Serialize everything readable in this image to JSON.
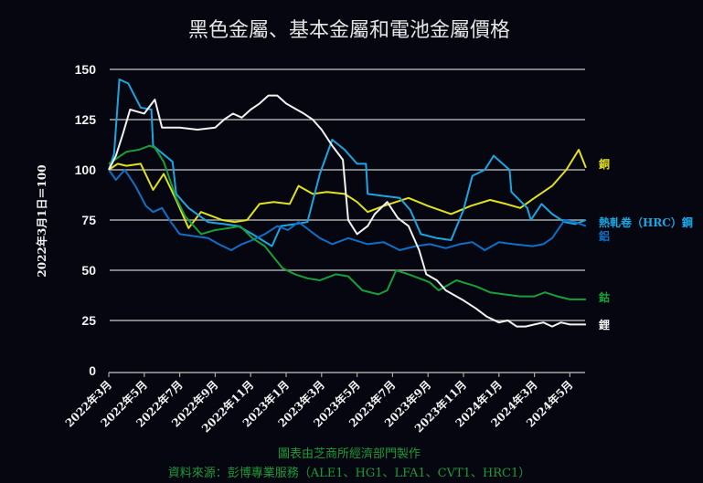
{
  "chart_data": {
    "type": "line",
    "title": "黑色金屬、基本金屬和電池金屬價格",
    "ylabel": "2022年3月1日＝100",
    "xlabel": "",
    "ylim": [
      0,
      150
    ],
    "yticks": [
      0,
      25,
      50,
      75,
      100,
      125,
      150
    ],
    "grid": true,
    "x_unit": "months since 2022-03",
    "xlim": [
      0,
      27
    ],
    "xticks": [
      {
        "m": 0,
        "label": "2022年3月"
      },
      {
        "m": 2,
        "label": "2022年5月"
      },
      {
        "m": 4,
        "label": "2022年7月"
      },
      {
        "m": 6,
        "label": "2022年9月"
      },
      {
        "m": 8,
        "label": "2022年11月"
      },
      {
        "m": 10,
        "label": "2023年1月"
      },
      {
        "m": 12,
        "label": "2023年3月"
      },
      {
        "m": 14,
        "label": "2023年5月"
      },
      {
        "m": 16,
        "label": "2023年7月"
      },
      {
        "m": 18,
        "label": "2023年9月"
      },
      {
        "m": 20,
        "label": "2023年11月"
      },
      {
        "m": 22,
        "label": "2024年1月"
      },
      {
        "m": 24,
        "label": "2024年3月"
      },
      {
        "m": 26,
        "label": "2024年5月"
      }
    ],
    "legend_placement": "right-end labels",
    "series": [
      {
        "name": "銅",
        "color": "#e2e21c",
        "x": [
          0,
          0.5,
          1,
          1.8,
          2.5,
          3.1,
          3.8,
          4.5,
          5.2,
          5.8,
          6.4,
          7.1,
          7.8,
          8.5,
          9.3,
          10.2,
          10.7,
          11.5,
          12.3,
          13.3,
          14,
          14.6,
          15.5,
          16.9,
          18,
          19.3,
          20.4,
          21.5,
          22.4,
          23.2,
          24,
          25,
          25.8,
          26.5,
          26.9
        ],
        "y": [
          100,
          103,
          102,
          103,
          90,
          98,
          85,
          71,
          79,
          77,
          75,
          74,
          75,
          83,
          84,
          83,
          92,
          88,
          89,
          88,
          84,
          79,
          82,
          86,
          82,
          78,
          82,
          85,
          83,
          81,
          86,
          92,
          100,
          110,
          101
        ]
      },
      {
        "name": "熱軋卷（HRC）鋼",
        "color": "#1aa6e2",
        "x": [
          0,
          0.3,
          0.6,
          1.1,
          1.8,
          2.4,
          2.5,
          3.6,
          3.8,
          4.5,
          5.6,
          6.5,
          7.3,
          8.1,
          9.2,
          9.7,
          10.5,
          11.2,
          11.9,
          12.6,
          13.3,
          14,
          14.5,
          14.6,
          15.5,
          16.4,
          17,
          17.6,
          18.5,
          19.3,
          20,
          20.5,
          21.2,
          21.7,
          22.6,
          22.7,
          23.6,
          23.8,
          24.4,
          25,
          25.7,
          26.3,
          26.9
        ],
        "y": [
          100,
          108,
          145,
          143,
          131,
          130,
          112,
          104,
          88,
          81,
          74,
          73,
          72,
          68,
          62,
          72,
          73,
          74,
          98,
          115,
          110,
          103,
          103,
          88,
          87,
          86,
          80,
          68,
          66,
          65,
          80,
          97,
          100,
          107,
          100,
          89,
          81,
          75,
          83,
          78,
          74,
          73,
          75
        ]
      },
      {
        "name": "鋁",
        "color": "#0f6fc6",
        "x": [
          0,
          0.4,
          0.9,
          1.5,
          2.1,
          2.5,
          3,
          3.5,
          4,
          4.8,
          5.6,
          6.2,
          6.9,
          7.5,
          8.1,
          8.8,
          9.5,
          10.1,
          10.7,
          11.3,
          11.9,
          12.6,
          13.5,
          14.6,
          15.5,
          16.4,
          17.3,
          18.1,
          19,
          19.8,
          20.5,
          21.2,
          22,
          22.8,
          23.9,
          24.5,
          25,
          25.7,
          26.3,
          26.9
        ],
        "y": [
          100,
          95,
          100,
          92,
          82,
          79,
          81,
          74,
          68,
          67,
          66,
          63,
          60,
          63,
          65,
          68,
          72,
          70,
          74,
          70,
          66,
          63,
          66,
          63,
          64,
          60,
          62,
          63,
          61,
          63,
          64,
          60,
          64,
          63,
          62,
          63,
          66,
          75,
          74,
          72
        ]
      },
      {
        "name": "鈷",
        "color": "#17a03a",
        "x": [
          0,
          0.5,
          1,
          1.7,
          2.3,
          2.6,
          3.1,
          3.8,
          4.3,
          5.2,
          6,
          6.8,
          7.4,
          8.1,
          8.8,
          9.8,
          10.5,
          11.2,
          11.9,
          12.8,
          13.5,
          14.3,
          15.2,
          15.7,
          16.2,
          16.9,
          17.5,
          18.1,
          18.6,
          19.6,
          20.7,
          21.5,
          22.3,
          23.2,
          24,
          24.6,
          25.3,
          26,
          26.9
        ],
        "y": [
          103,
          106,
          109,
          110,
          112,
          111,
          104,
          86,
          77,
          68,
          70,
          71,
          72,
          66,
          62,
          51,
          48,
          46,
          45,
          48,
          47,
          40,
          38,
          40,
          50,
          48,
          46,
          44,
          40,
          45,
          42,
          39,
          38,
          37,
          37,
          39,
          37,
          35.5,
          35.5
        ]
      },
      {
        "name": "鋰",
        "color": "#f2f2f2",
        "x": [
          0,
          0.4,
          0.8,
          1.2,
          2,
          2.6,
          3,
          4,
          5,
          6,
          6.5,
          7,
          7.5,
          8,
          8.5,
          9,
          9.5,
          10,
          10.6,
          11,
          11.5,
          12,
          12.6,
          13.2,
          13.5,
          14,
          14.6,
          15,
          15.7,
          16.3,
          16.9,
          17.5,
          17.9,
          18.5,
          19,
          20,
          20.7,
          21.3,
          22,
          22.5,
          23,
          23.5,
          24,
          24.5,
          25,
          25.5,
          26,
          26.9
        ],
        "y": [
          100,
          107,
          118,
          130,
          128,
          135,
          121,
          121,
          120,
          121,
          125,
          128,
          126,
          130,
          133,
          137,
          137,
          133,
          130,
          128,
          125,
          120,
          112,
          105,
          75,
          68,
          72,
          78,
          84,
          76,
          72,
          60,
          48,
          45,
          40,
          35,
          31,
          27,
          24,
          25,
          22,
          22,
          23,
          24,
          22,
          24,
          23,
          23
        ]
      }
    ]
  },
  "footer": {
    "credit": "圖表由芝商所經濟部門製作",
    "source": "資料來源：彭博專業服務（ALE1、HG1、LFA1、CVT1、HRC1）"
  }
}
